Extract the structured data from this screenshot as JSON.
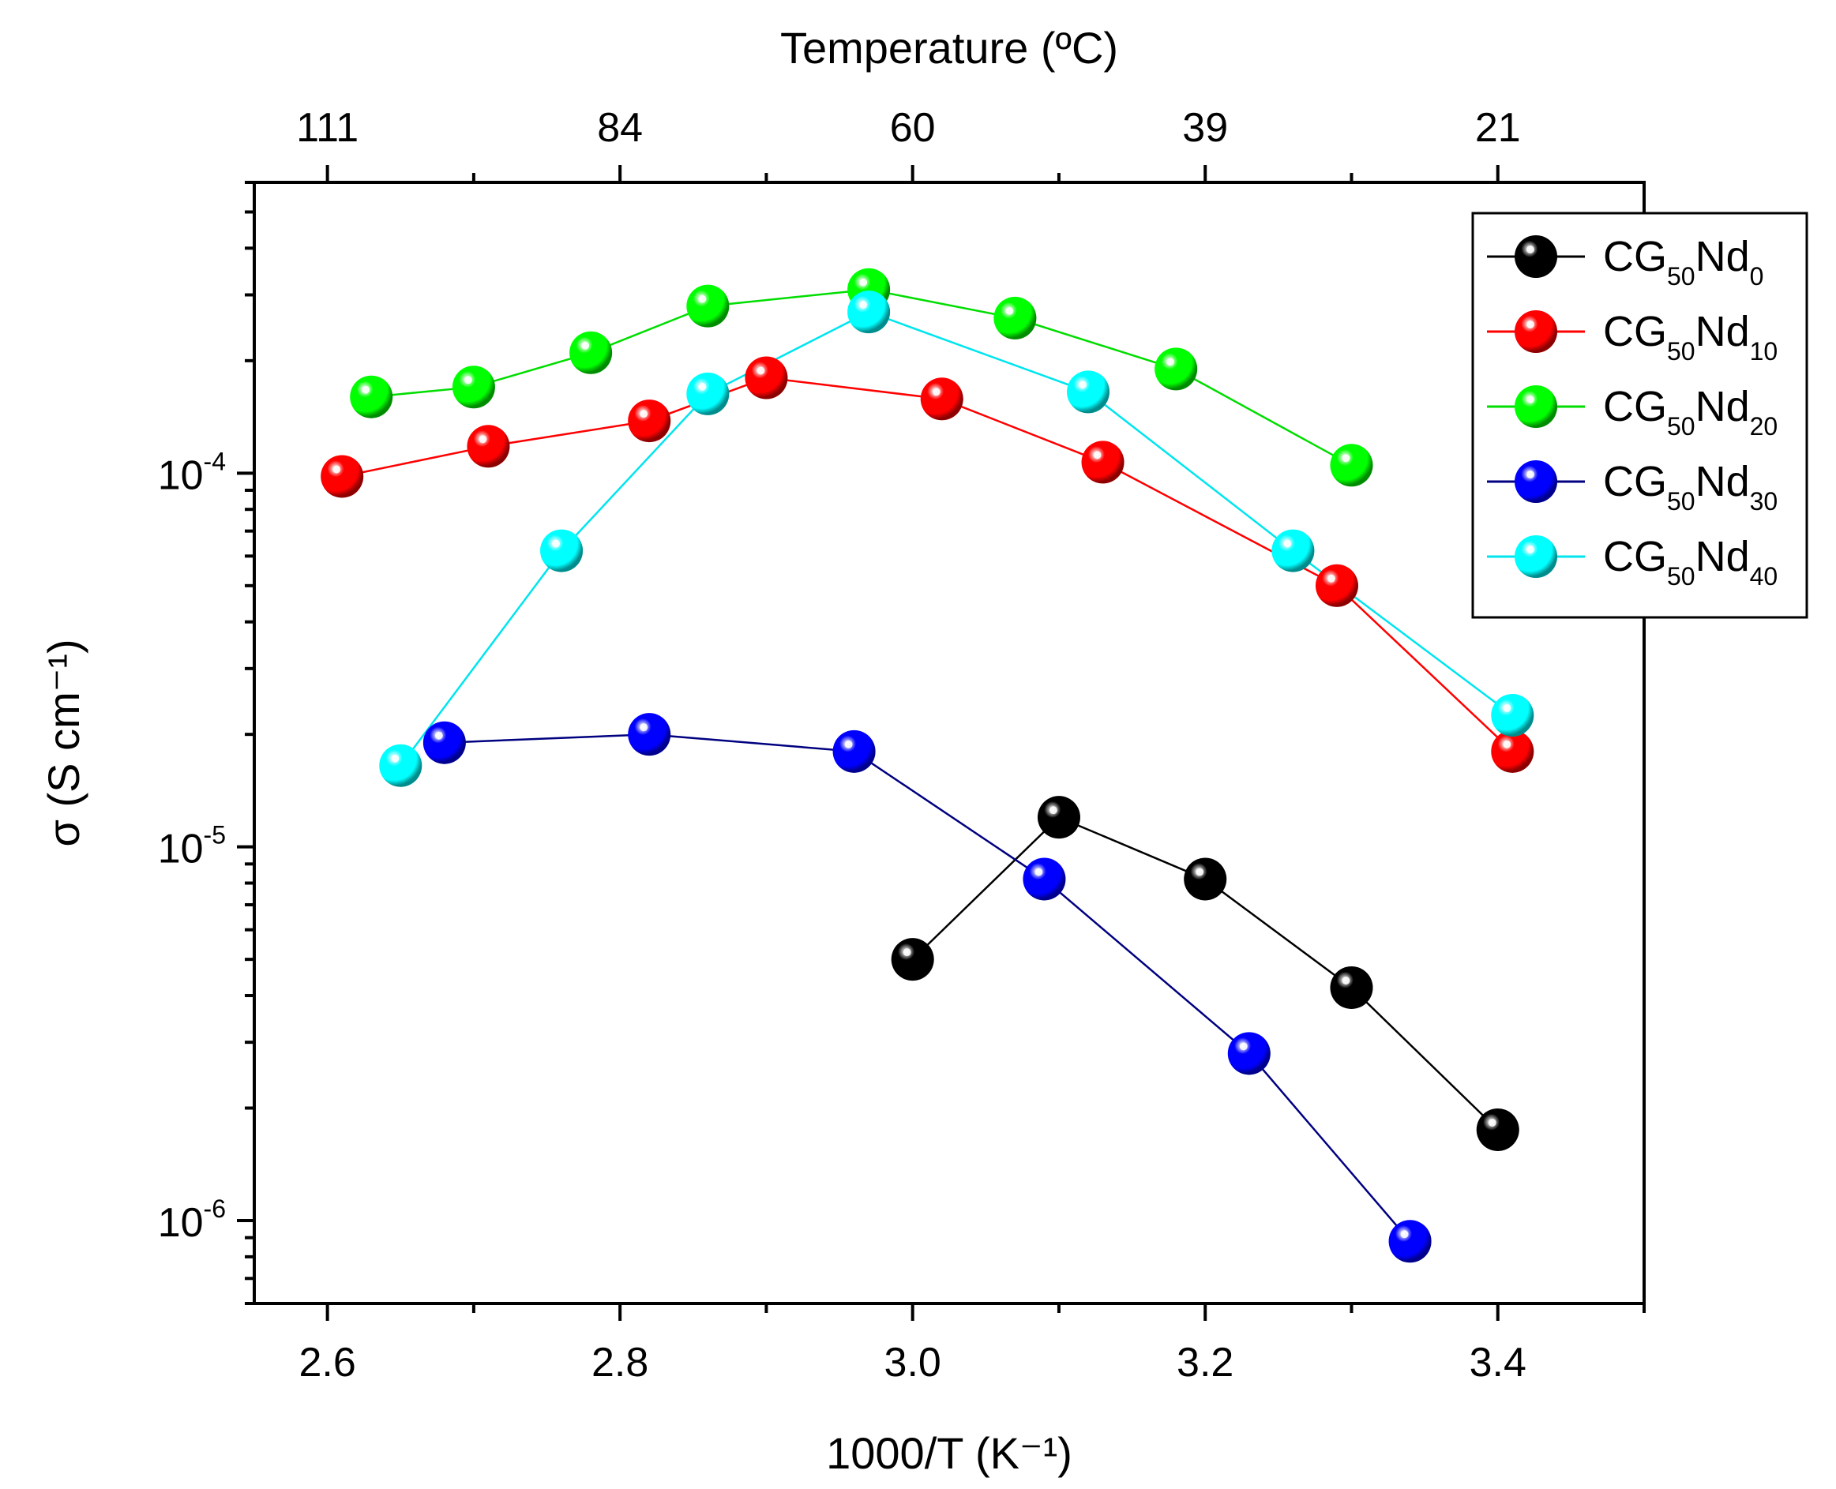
{
  "chart_data": {
    "type": "scatter",
    "title": "",
    "xlabel": "1000/T (K⁻¹)",
    "ylabel": "σ (S cm⁻¹)",
    "top_xlabel": "Temperature (ºC)",
    "xlim": [
      2.55,
      3.5
    ],
    "ylim": [
      6e-07,
      0.0006
    ],
    "yscale": "log",
    "x_ticks": [
      {
        "value": 2.6,
        "label": "2.6"
      },
      {
        "value": 2.8,
        "label": "2.8"
      },
      {
        "value": 3.0,
        "label": "3.0"
      },
      {
        "value": 3.2,
        "label": "3.2"
      },
      {
        "value": 3.4,
        "label": "3.4"
      }
    ],
    "x_minor_ticks": [
      2.7,
      2.9,
      3.1,
      3.3,
      3.5
    ],
    "top_ticks": [
      {
        "value": 2.6,
        "label": "111"
      },
      {
        "value": 2.8,
        "label": "84"
      },
      {
        "value": 3.0,
        "label": "60"
      },
      {
        "value": 3.2,
        "label": "39"
      },
      {
        "value": 3.4,
        "label": "21"
      }
    ],
    "top_minor_ticks": [
      2.7,
      2.9,
      3.1,
      3.3
    ],
    "y_ticks": [
      {
        "value": 0.0001,
        "base": "10",
        "exp": "-4"
      },
      {
        "value": 1e-05,
        "base": "10",
        "exp": "-5"
      },
      {
        "value": 1e-06,
        "base": "10",
        "exp": "-6"
      }
    ],
    "legend": {
      "position": "top-right"
    },
    "series": [
      {
        "name": "CG50Nd0",
        "label_main": "CG",
        "label_sub1": "50",
        "label_mid": "Nd",
        "label_sub2": "0",
        "color": "#000000",
        "marker_fill": "#000000",
        "x": [
          3.0,
          3.1,
          3.2,
          3.3,
          3.4
        ],
        "y": [
          5e-06,
          1.2e-05,
          8.2e-06,
          4.2e-06,
          1.75e-06
        ]
      },
      {
        "name": "CG50Nd10",
        "label_main": "CG",
        "label_sub1": "50",
        "label_mid": "Nd",
        "label_sub2": "10",
        "color": "#ff0000",
        "marker_fill": "#ff0000",
        "x": [
          2.61,
          2.71,
          2.82,
          2.9,
          3.02,
          3.13,
          3.29,
          3.41
        ],
        "y": [
          9.8e-05,
          0.000118,
          0.000138,
          0.00018,
          0.000158,
          0.000107,
          5e-05,
          1.8e-05
        ]
      },
      {
        "name": "CG50Nd20",
        "label_main": "CG",
        "label_sub1": "50",
        "label_mid": "Nd",
        "label_sub2": "20",
        "color": "#00dd00",
        "marker_fill": "#00ff00",
        "x": [
          2.63,
          2.7,
          2.78,
          2.86,
          2.97,
          3.07,
          3.18,
          3.3
        ],
        "y": [
          0.00016,
          0.00017,
          0.00021,
          0.00028,
          0.00031,
          0.00026,
          0.00019,
          0.000105
        ]
      },
      {
        "name": "CG50Nd30",
        "label_main": "CG",
        "label_sub1": "50",
        "label_mid": "Nd",
        "label_sub2": "30",
        "color": "#000080",
        "marker_fill": "#0000ff",
        "x": [
          2.68,
          2.82,
          2.96,
          3.09,
          3.23,
          3.34
        ],
        "y": [
          1.9e-05,
          2e-05,
          1.8e-05,
          8.2e-06,
          2.8e-06,
          8.8e-07
        ]
      },
      {
        "name": "CG50Nd40",
        "label_main": "CG",
        "label_sub1": "50",
        "label_mid": "Nd",
        "label_sub2": "40",
        "color": "#00e5ee",
        "marker_fill": "#00ffff",
        "x": [
          2.65,
          2.76,
          2.86,
          2.97,
          3.12,
          3.26,
          3.41
        ],
        "y": [
          1.65e-05,
          6.2e-05,
          0.000163,
          0.00027,
          0.000165,
          6.2e-05,
          2.25e-05
        ]
      }
    ]
  }
}
